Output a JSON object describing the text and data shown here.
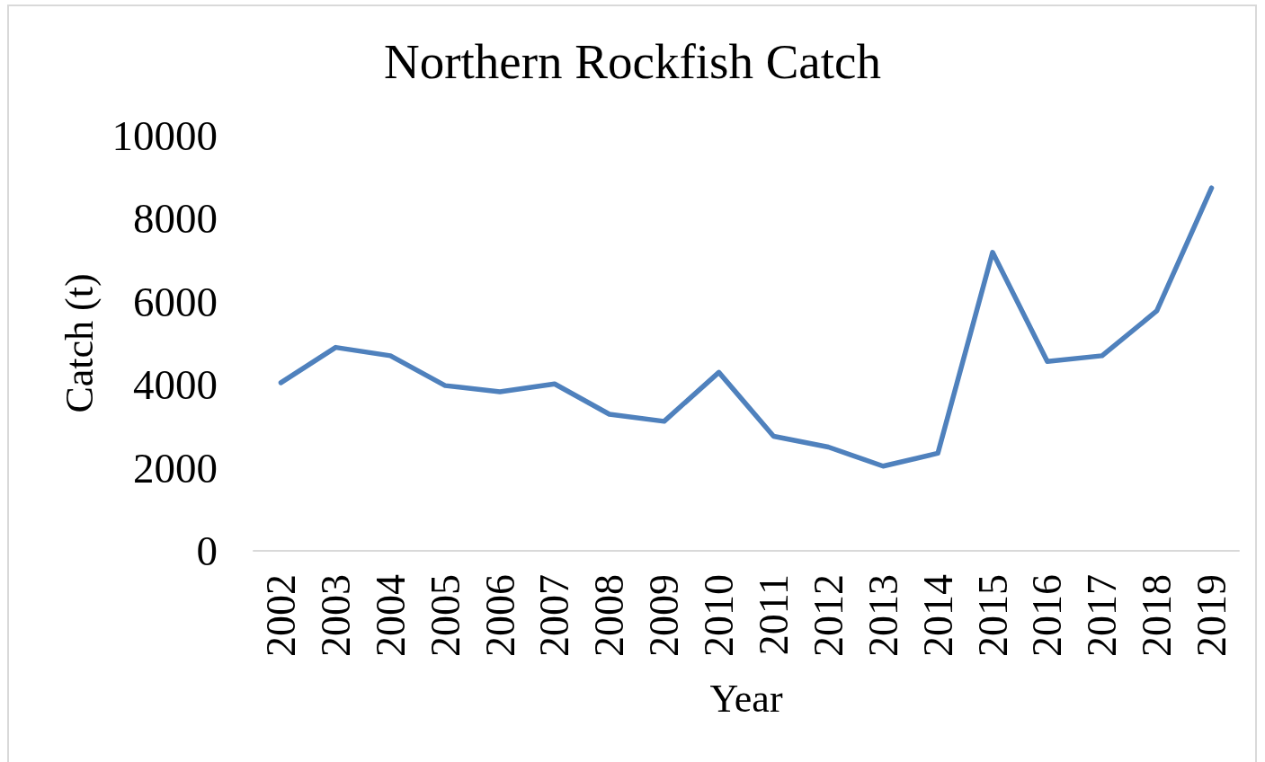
{
  "chart_data": {
    "type": "line",
    "title": "Northern Rockfish Catch",
    "xlabel": "Year",
    "ylabel": "Catch (t)",
    "categories": [
      "2002",
      "2003",
      "2004",
      "2005",
      "2006",
      "2007",
      "2008",
      "2009",
      "2010",
      "2011",
      "2012",
      "2013",
      "2014",
      "2015",
      "2016",
      "2017",
      "2018",
      "2019"
    ],
    "series": [
      {
        "color": "#4f81bd",
        "values": [
          4050,
          4900,
          4700,
          3980,
          3830,
          4020,
          3290,
          3120,
          4300,
          2760,
          2500,
          2040,
          2350,
          7190,
          4560,
          4700,
          5780,
          8740
        ]
      }
    ],
    "ylim": [
      0,
      10000
    ],
    "yticks": [
      0,
      2000,
      4000,
      6000,
      8000,
      10000
    ],
    "grid": false,
    "marker": "none",
    "line_style": "solid"
  }
}
